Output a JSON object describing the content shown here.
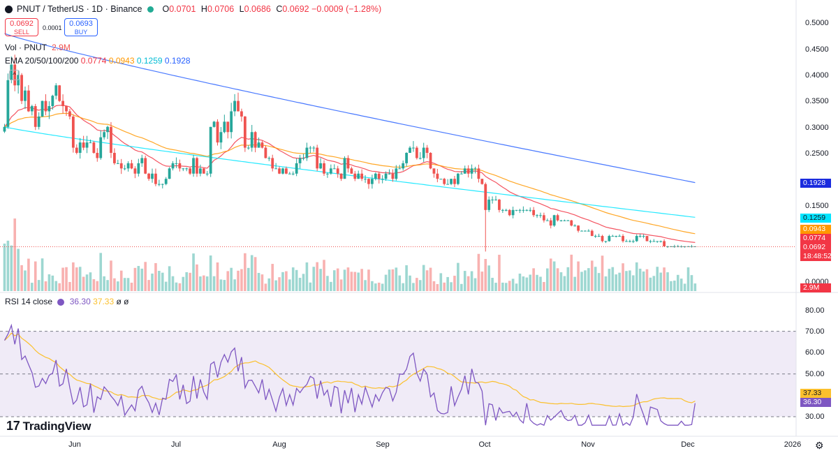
{
  "header": {
    "title": "PNUT / TetherUS · 1D · Binance",
    "ohlc": [
      {
        "k": "O",
        "v": "0.0701"
      },
      {
        "k": "H",
        "v": "0.0706"
      },
      {
        "k": "L",
        "v": "0.0686"
      },
      {
        "k": "C",
        "v": "0.0692"
      },
      {
        "k": "",
        "v": "−0.0009 (−1.28%)"
      }
    ]
  },
  "trade": {
    "sell_price": "0.0692",
    "sell_label": "SELL",
    "buy_price": "0.0693",
    "buy_label": "BUY",
    "spread": "0.0001"
  },
  "volume_legend": {
    "label": "Vol · PNUT",
    "value": "2.9M"
  },
  "ema_legend": {
    "label": "EMA 20/50/100/200",
    "values": [
      "0.0774",
      "0.0943",
      "0.1259",
      "0.1928"
    ]
  },
  "rsi_legend": {
    "label": "RSI 14 close",
    "value1": "36.30",
    "value2": "37.33",
    "value3": "ø",
    "value4": "ø"
  },
  "colors": {
    "up": "#26a69a",
    "down": "#ef5350",
    "ema20": "#f23645",
    "ema50": "#ff9800",
    "ema100": "#00e5ff",
    "ema200": "#2962ff",
    "rsi": "#7e57c2",
    "rsi_ma": "#fbc02d",
    "rsi_band": "#ede7f6"
  },
  "logo": "TradingView",
  "gear_icon": "gear-icon",
  "price_axis": [
    "0.5000",
    "0.4500",
    "0.4000",
    "0.3500",
    "0.3000",
    "0.2500",
    "0.1500",
    "0.0000"
  ],
  "price_badges": [
    {
      "text": "0.1928",
      "color": "#1a2bde",
      "value": 0.1928
    },
    {
      "text": "0.1259",
      "color": "#00e5ff",
      "value": 0.1259,
      "dark": true
    },
    {
      "text": "0.0943",
      "color": "#ff9800",
      "value": 0.0943
    },
    {
      "text": "0.0774",
      "color": "#f23645",
      "value": 0.0774
    },
    {
      "text": "0.0692",
      "color": "#f23645",
      "value": 0.0692
    },
    {
      "text": "18:48:52",
      "color": "#f23645",
      "value": 0.0692,
      "sub": true
    }
  ],
  "volume_badge": "2.9M",
  "rsi_axis": [
    "80.00",
    "70.00",
    "60.00",
    "50.00",
    "30.00"
  ],
  "rsi_badges": [
    {
      "text": "37.33",
      "color": "#fbc02d",
      "value": 37.33
    },
    {
      "text": "36.30",
      "color": "#7e57c2",
      "value": 36.3
    }
  ],
  "time_axis": [
    "Jun",
    "Jul",
    "Aug",
    "Sep",
    "Oct",
    "Nov",
    "Dec",
    "2026"
  ],
  "chart_data": {
    "type": "candlestick",
    "title": "PNUT / TetherUS · 1D · Binance",
    "price_range": [
      0.0,
      0.52
    ],
    "rsi_range": [
      25,
      85
    ],
    "rsi_levels": [
      70,
      50,
      30
    ],
    "last_price": 0.0692,
    "month_start_index": {
      "Jun": 20,
      "Jul": 50,
      "Aug": 80,
      "Sep": 111,
      "Oct": 141,
      "Nov": 172,
      "Dec": 202,
      "2026": 233
    },
    "closes": [
      0.3,
      0.39,
      0.42,
      0.38,
      0.4,
      0.35,
      0.37,
      0.33,
      0.34,
      0.3,
      0.32,
      0.35,
      0.33,
      0.34,
      0.36,
      0.38,
      0.35,
      0.34,
      0.33,
      0.32,
      0.26,
      0.25,
      0.27,
      0.26,
      0.27,
      0.27,
      0.25,
      0.24,
      0.28,
      0.29,
      0.3,
      0.25,
      0.23,
      0.23,
      0.22,
      0.22,
      0.23,
      0.22,
      0.21,
      0.23,
      0.24,
      0.21,
      0.2,
      0.21,
      0.19,
      0.19,
      0.19,
      0.2,
      0.22,
      0.23,
      0.23,
      0.22,
      0.22,
      0.22,
      0.21,
      0.24,
      0.21,
      0.22,
      0.21,
      0.21,
      0.3,
      0.31,
      0.27,
      0.29,
      0.31,
      0.29,
      0.33,
      0.35,
      0.33,
      0.32,
      0.26,
      0.26,
      0.29,
      0.26,
      0.27,
      0.26,
      0.24,
      0.24,
      0.22,
      0.22,
      0.21,
      0.22,
      0.21,
      0.21,
      0.21,
      0.23,
      0.24,
      0.24,
      0.26,
      0.26,
      0.26,
      0.22,
      0.23,
      0.21,
      0.21,
      0.22,
      0.22,
      0.21,
      0.2,
      0.24,
      0.22,
      0.21,
      0.2,
      0.21,
      0.2,
      0.2,
      0.19,
      0.2,
      0.21,
      0.2,
      0.2,
      0.21,
      0.21,
      0.2,
      0.22,
      0.22,
      0.23,
      0.25,
      0.26,
      0.26,
      0.24,
      0.24,
      0.26,
      0.25,
      0.22,
      0.21,
      0.2,
      0.2,
      0.19,
      0.19,
      0.2,
      0.19,
      0.21,
      0.21,
      0.22,
      0.21,
      0.22,
      0.22,
      0.2,
      0.19,
      0.14,
      0.16,
      0.16,
      0.16,
      0.14,
      0.14,
      0.14,
      0.13,
      0.14,
      0.14,
      0.14,
      0.14,
      0.14,
      0.14,
      0.13,
      0.13,
      0.13,
      0.12,
      0.12,
      0.11,
      0.13,
      0.12,
      0.12,
      0.12,
      0.12,
      0.11,
      0.11,
      0.1,
      0.1,
      0.1,
      0.1,
      0.09,
      0.09,
      0.09,
      0.08,
      0.08,
      0.09,
      0.09,
      0.09,
      0.09,
      0.08,
      0.08,
      0.08,
      0.08,
      0.09,
      0.09,
      0.09,
      0.08,
      0.08,
      0.08,
      0.08,
      0.08,
      0.07,
      0.07,
      0.07,
      0.07,
      0.07,
      0.07,
      0.07,
      0.07,
      0.07,
      0.07
    ],
    "ema": [
      {
        "name": "EMA 20",
        "period": 20,
        "last": 0.0774
      },
      {
        "name": "EMA 50",
        "period": 50,
        "last": 0.0943
      },
      {
        "name": "EMA 100",
        "period": 100,
        "last": 0.1259
      },
      {
        "name": "EMA 200",
        "period": 200,
        "last": 0.1928
      }
    ],
    "rsi_last": 36.3,
    "rsi_ma_last": 37.33,
    "volume_last": "2.9M"
  }
}
